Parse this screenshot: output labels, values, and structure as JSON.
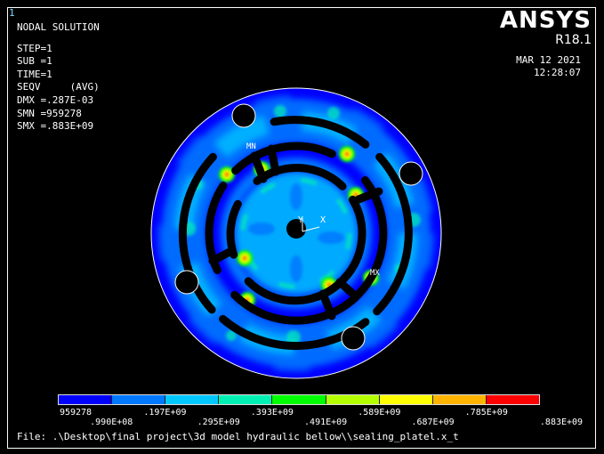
{
  "window_number": "1",
  "info": {
    "title": "NODAL SOLUTION",
    "step": "STEP=1",
    "sub": "SUB =1",
    "time": "TIME=1",
    "result": "SEQV     (AVG)",
    "dmx": "DMX =.287E-03",
    "smn": "SMN =959278",
    "smx": "SMX =.883E+09"
  },
  "brand": {
    "name": "ANSYS",
    "version": "R18.1"
  },
  "datetime": {
    "date": "MAR 12 2021",
    "time": "12:28:07"
  },
  "plot_labels": {
    "min": "MN",
    "max": "MX",
    "axis_y": "Y",
    "axis_x": "X"
  },
  "legend": {
    "colors": [
      "#0000ff",
      "#0078ff",
      "#00c8ff",
      "#00f0b4",
      "#00ff00",
      "#b4ff00",
      "#ffff00",
      "#ffb400",
      "#ff0000"
    ],
    "bottom_labels": [
      "959278",
      ".197E+09",
      ".393E+09",
      ".589E+09",
      ".785E+09"
    ],
    "top_labels": [
      ".990E+08",
      ".295E+09",
      ".491E+09",
      ".687E+09",
      ".883E+09"
    ]
  },
  "file_line": "File: .\\Desktop\\final project\\3d model hydraulic bellow\\\\sealing_platel.x_t"
}
